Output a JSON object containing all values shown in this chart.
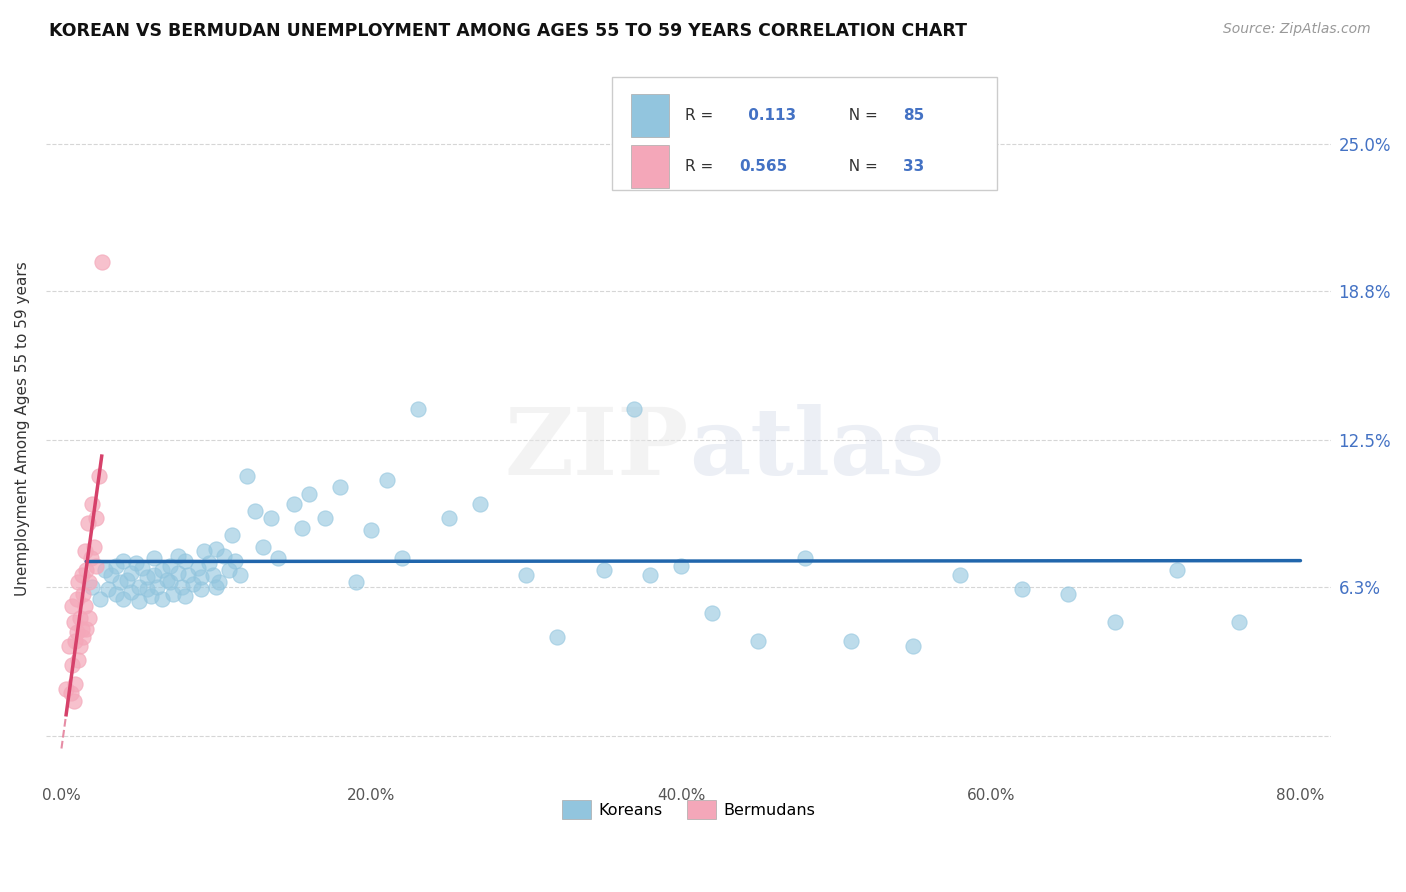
{
  "title": "KOREAN VS BERMUDAN UNEMPLOYMENT AMONG AGES 55 TO 59 YEARS CORRELATION CHART",
  "source": "Source: ZipAtlas.com",
  "ylabel": "Unemployment Among Ages 55 to 59 years",
  "xlim": [
    -0.01,
    0.82
  ],
  "ylim": [
    -0.02,
    0.28
  ],
  "yticks": [
    0.0,
    0.063,
    0.125,
    0.188,
    0.25
  ],
  "ytick_labels": [
    "",
    "6.3%",
    "12.5%",
    "18.8%",
    "25.0%"
  ],
  "xtick_labels": [
    "0.0%",
    "",
    "20.0%",
    "",
    "40.0%",
    "",
    "60.0%",
    "",
    "80.0%"
  ],
  "xticks": [
    0.0,
    0.1,
    0.2,
    0.3,
    0.4,
    0.5,
    0.6,
    0.7,
    0.8
  ],
  "korean_R": "0.113",
  "korean_N": "85",
  "bermudan_R": "0.565",
  "bermudan_N": "33",
  "korean_color": "#92c5de",
  "bermudan_color": "#f4a7b9",
  "korean_line_color": "#2166ac",
  "bermudan_line_color": "#d6416a",
  "watermark": "ZIPatlas",
  "korean_points_x": [
    0.02,
    0.025,
    0.028,
    0.03,
    0.032,
    0.035,
    0.035,
    0.038,
    0.04,
    0.04,
    0.042,
    0.045,
    0.045,
    0.048,
    0.05,
    0.05,
    0.052,
    0.055,
    0.055,
    0.058,
    0.06,
    0.06,
    0.062,
    0.065,
    0.065,
    0.068,
    0.07,
    0.07,
    0.072,
    0.075,
    0.075,
    0.078,
    0.08,
    0.08,
    0.082,
    0.085,
    0.088,
    0.09,
    0.09,
    0.092,
    0.095,
    0.098,
    0.1,
    0.1,
    0.102,
    0.105,
    0.108,
    0.11,
    0.112,
    0.115,
    0.12,
    0.125,
    0.13,
    0.135,
    0.14,
    0.15,
    0.155,
    0.16,
    0.17,
    0.18,
    0.19,
    0.2,
    0.21,
    0.22,
    0.23,
    0.25,
    0.27,
    0.3,
    0.32,
    0.35,
    0.38,
    0.4,
    0.42,
    0.45,
    0.48,
    0.51,
    0.55,
    0.58,
    0.62,
    0.65,
    0.68,
    0.72,
    0.76,
    0.4,
    0.37
  ],
  "korean_points_y": [
    0.063,
    0.058,
    0.07,
    0.062,
    0.068,
    0.06,
    0.072,
    0.065,
    0.058,
    0.074,
    0.066,
    0.061,
    0.069,
    0.073,
    0.063,
    0.057,
    0.071,
    0.067,
    0.062,
    0.059,
    0.075,
    0.068,
    0.063,
    0.07,
    0.058,
    0.066,
    0.072,
    0.065,
    0.06,
    0.076,
    0.069,
    0.063,
    0.059,
    0.074,
    0.068,
    0.064,
    0.071,
    0.067,
    0.062,
    0.078,
    0.073,
    0.068,
    0.063,
    0.079,
    0.065,
    0.076,
    0.07,
    0.085,
    0.074,
    0.068,
    0.11,
    0.095,
    0.08,
    0.092,
    0.075,
    0.098,
    0.088,
    0.102,
    0.092,
    0.105,
    0.065,
    0.087,
    0.108,
    0.075,
    0.138,
    0.092,
    0.098,
    0.068,
    0.042,
    0.07,
    0.068,
    0.072,
    0.052,
    0.04,
    0.075,
    0.04,
    0.038,
    0.068,
    0.062,
    0.06,
    0.048,
    0.07,
    0.048,
    0.245,
    0.138
  ],
  "bermudan_points_x": [
    0.003,
    0.005,
    0.006,
    0.007,
    0.007,
    0.008,
    0.008,
    0.009,
    0.009,
    0.01,
    0.01,
    0.011,
    0.011,
    0.012,
    0.012,
    0.013,
    0.013,
    0.014,
    0.014,
    0.015,
    0.015,
    0.016,
    0.016,
    0.017,
    0.018,
    0.018,
    0.019,
    0.02,
    0.021,
    0.022,
    0.022,
    0.024,
    0.026
  ],
  "bermudan_points_y": [
    0.02,
    0.038,
    0.018,
    0.03,
    0.055,
    0.015,
    0.048,
    0.04,
    0.022,
    0.058,
    0.044,
    0.032,
    0.065,
    0.05,
    0.038,
    0.068,
    0.045,
    0.06,
    0.042,
    0.078,
    0.055,
    0.07,
    0.045,
    0.09,
    0.065,
    0.05,
    0.075,
    0.098,
    0.08,
    0.092,
    0.072,
    0.11,
    0.2
  ]
}
